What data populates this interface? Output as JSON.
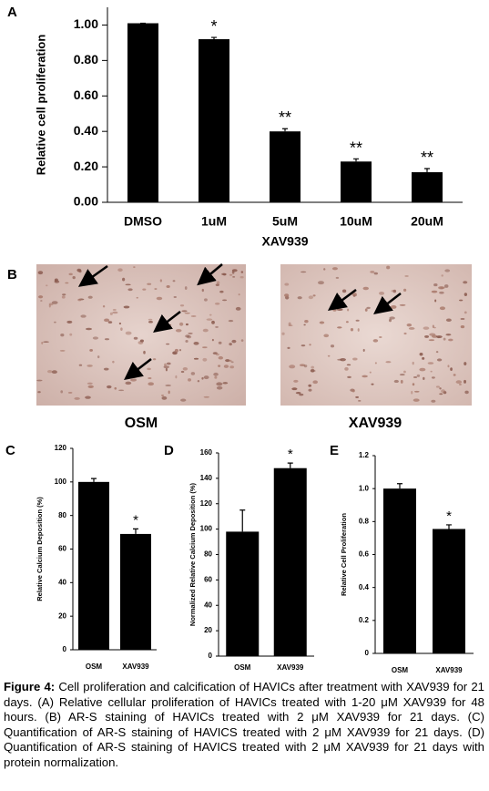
{
  "chart_data": [
    {
      "type": "bar",
      "panel": "A",
      "ylabel": "Relative cell proliferation",
      "xlabel": "XAV939",
      "categories": [
        "DMSO",
        "1uM",
        "5uM",
        "10uM",
        "20uM"
      ],
      "values": [
        1.01,
        0.92,
        0.4,
        0.23,
        0.17
      ],
      "errors": [
        0,
        0.01,
        0.015,
        0.015,
        0.02
      ],
      "annotations": [
        null,
        "*",
        "**",
        "**",
        "**"
      ],
      "color": "#000000",
      "ylim": [
        0,
        1.1
      ],
      "yticks": [
        {
          "value": 0,
          "label": "0.00"
        },
        {
          "value": 0.2,
          "label": "0.20"
        },
        {
          "value": 0.4,
          "label": "0.40"
        },
        {
          "value": 0.6,
          "label": "0.60"
        },
        {
          "value": 0.8,
          "label": "0.80"
        },
        {
          "value": 1,
          "label": "1.00"
        }
      ]
    },
    {
      "type": "bar",
      "panel": "C",
      "ylabel": "Relative Calcium Deposition (%)",
      "categories": [
        "OSM",
        "XAV939"
      ],
      "values": [
        100,
        69
      ],
      "errors": [
        2,
        3
      ],
      "annotations": [
        null,
        "*"
      ],
      "color": "#000000",
      "ylim": [
        0,
        120
      ],
      "yticks": [
        0,
        20,
        40,
        60,
        80,
        100,
        120
      ]
    },
    {
      "type": "bar",
      "panel": "D",
      "ylabel": "Normalized Relative Calcium Deposition (%)",
      "categories": [
        "OSM",
        "XAV939"
      ],
      "values": [
        98,
        148
      ],
      "errors": [
        17,
        4
      ],
      "annotations": [
        null,
        "*"
      ],
      "color": "#000000",
      "ylim": [
        0,
        160
      ],
      "yticks": [
        0,
        20,
        40,
        60,
        80,
        100,
        120,
        140,
        160
      ]
    },
    {
      "type": "bar",
      "panel": "E",
      "ylabel": "Relative Cell Proliferation",
      "categories": [
        "OSM",
        "XAV939"
      ],
      "values": [
        1.0,
        0.755
      ],
      "errors": [
        0.03,
        0.025
      ],
      "annotations": [
        null,
        "*"
      ],
      "color": "#000000",
      "ylim": [
        0,
        1.2
      ],
      "yticks": [
        0,
        0.2,
        0.4,
        0.6,
        0.8,
        {
          "value": 1,
          "label": "1.0"
        },
        1.2
      ]
    }
  ],
  "images": {
    "panel": "B",
    "labels": [
      "OSM",
      "XAV939"
    ]
  },
  "caption": {
    "label": "Figure 4:",
    "text": "Cell proliferation and calcification of HAVICs after treatment with XAV939 for 21 days. (A) Relative cellular proliferation of HAVICs treated with 1-20 μM XAV939 for 48 hours. (B) AR-S staining of HAVICs treated with 2 μM XAV939 for 21 days. (C) Quantification of AR-S staining of HAVICS treated with 2 μM XAV939 for 21 days. (D) Quantification of AR-S staining of HAVICS treated with 2 μM XAV939 for 21 days with protein normalization."
  }
}
